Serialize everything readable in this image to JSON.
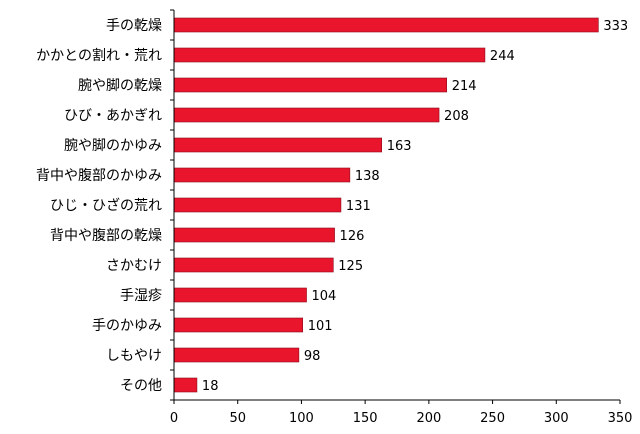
{
  "chart_data": {
    "type": "bar",
    "orientation": "horizontal",
    "categories": [
      "手の乾燥",
      "かかとの割れ・荒れ",
      "腕や脚の乾燥",
      "ひび・あかぎれ",
      "腕や脚のかゆみ",
      "背中や腹部のかゆみ",
      "ひじ・ひざの荒れ",
      "背中や腹部の乾燥",
      "さかむけ",
      "手湿疹",
      "手のかゆみ",
      "しもやけ",
      "その他"
    ],
    "values": [
      333,
      244,
      214,
      208,
      163,
      138,
      131,
      126,
      125,
      104,
      101,
      98,
      18
    ],
    "title": "",
    "xlabel": "",
    "ylabel": "",
    "xlim": [
      0,
      350
    ],
    "xticks": [
      0,
      50,
      100,
      150,
      200,
      250,
      300,
      350
    ],
    "data_labels": true,
    "grid": false,
    "legend": "none",
    "bar_color": "#e8152d",
    "bar_outline": "#8a0a18"
  }
}
